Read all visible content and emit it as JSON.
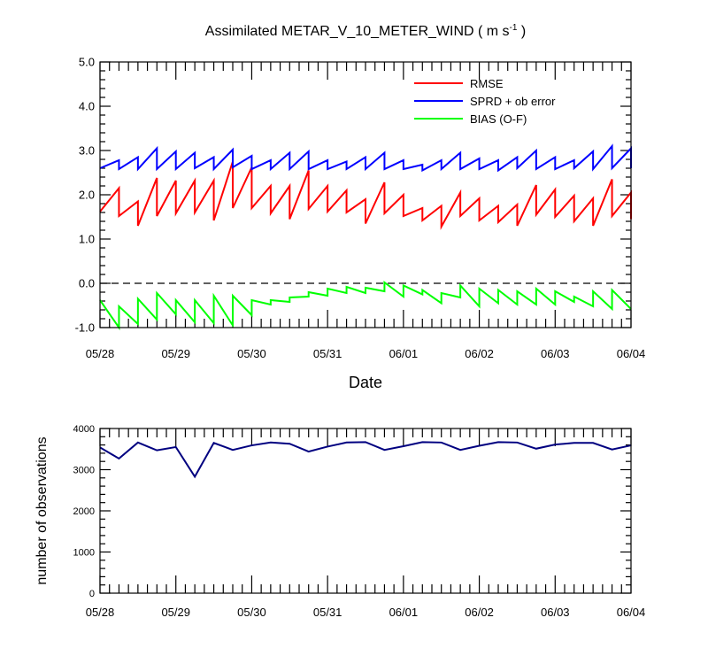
{
  "chart_data": [
    {
      "type": "line",
      "title": "Assimilated METAR_V_10_METER_WIND ( m s",
      "title_superscript": "-1",
      "title_close": " )",
      "xlabel": "Date",
      "ylabel": "",
      "xlim": [
        "05/28",
        "06/04"
      ],
      "ylim": [
        -1.0,
        5.0
      ],
      "yticks": [
        "-1.0",
        "0.0",
        "1.0",
        "2.0",
        "3.0",
        "4.0",
        "5.0"
      ],
      "ytick_values": [
        -1,
        0,
        1,
        2,
        3,
        4,
        5
      ],
      "xticks": [
        "05/28",
        "05/29",
        "05/30",
        "05/31",
        "06/01",
        "06/02",
        "06/03",
        "06/04"
      ],
      "reference_line": 0.0,
      "legend_position": "top-right",
      "series": [
        {
          "name": "RMSE",
          "color": "#ff0000",
          "points": [
            [
              0.0,
              1.62
            ],
            [
              0.25,
              2.15
            ],
            [
              0.25,
              1.52
            ],
            [
              0.5,
              1.85
            ],
            [
              0.5,
              1.3
            ],
            [
              0.75,
              2.38
            ],
            [
              0.75,
              1.52
            ],
            [
              1.0,
              2.32
            ],
            [
              1.0,
              1.58
            ],
            [
              1.25,
              2.32
            ],
            [
              1.25,
              1.6
            ],
            [
              1.5,
              2.32
            ],
            [
              1.5,
              1.42
            ],
            [
              1.75,
              2.75
            ],
            [
              1.75,
              1.7
            ],
            [
              2.0,
              2.62
            ],
            [
              2.0,
              1.7
            ],
            [
              2.25,
              2.2
            ],
            [
              2.25,
              1.58
            ],
            [
              2.5,
              2.2
            ],
            [
              2.5,
              1.45
            ],
            [
              2.75,
              2.55
            ],
            [
              2.75,
              1.68
            ],
            [
              3.0,
              2.2
            ],
            [
              3.0,
              1.62
            ],
            [
              3.25,
              2.1
            ],
            [
              3.25,
              1.6
            ],
            [
              3.5,
              1.9
            ],
            [
              3.5,
              1.35
            ],
            [
              3.75,
              2.28
            ],
            [
              3.75,
              1.58
            ],
            [
              4.0,
              2.0
            ],
            [
              4.0,
              1.52
            ],
            [
              4.25,
              1.7
            ],
            [
              4.25,
              1.42
            ],
            [
              4.5,
              1.75
            ],
            [
              4.5,
              1.28
            ],
            [
              4.75,
              2.05
            ],
            [
              4.75,
              1.52
            ],
            [
              5.0,
              1.92
            ],
            [
              5.0,
              1.42
            ],
            [
              5.25,
              1.75
            ],
            [
              5.25,
              1.38
            ],
            [
              5.5,
              1.78
            ],
            [
              5.5,
              1.3
            ],
            [
              5.75,
              2.22
            ],
            [
              5.75,
              1.55
            ],
            [
              6.0,
              2.12
            ],
            [
              6.0,
              1.5
            ],
            [
              6.25,
              1.98
            ],
            [
              6.25,
              1.4
            ],
            [
              6.5,
              1.92
            ],
            [
              6.5,
              1.3
            ],
            [
              6.75,
              2.35
            ],
            [
              6.75,
              1.52
            ],
            [
              7.0,
              2.05
            ],
            [
              7.0,
              1.45
            ]
          ]
        },
        {
          "name": "SPRD + ob error",
          "color": "#0000ff",
          "points": [
            [
              0.0,
              2.6
            ],
            [
              0.25,
              2.78
            ],
            [
              0.25,
              2.58
            ],
            [
              0.5,
              2.85
            ],
            [
              0.5,
              2.58
            ],
            [
              0.75,
              3.05
            ],
            [
              0.75,
              2.58
            ],
            [
              1.0,
              2.98
            ],
            [
              1.0,
              2.58
            ],
            [
              1.25,
              2.95
            ],
            [
              1.25,
              2.6
            ],
            [
              1.5,
              2.85
            ],
            [
              1.5,
              2.58
            ],
            [
              1.75,
              3.02
            ],
            [
              1.75,
              2.62
            ],
            [
              2.0,
              2.88
            ],
            [
              2.0,
              2.58
            ],
            [
              2.25,
              2.78
            ],
            [
              2.25,
              2.58
            ],
            [
              2.5,
              2.95
            ],
            [
              2.5,
              2.58
            ],
            [
              2.75,
              2.98
            ],
            [
              2.75,
              2.58
            ],
            [
              3.0,
              2.78
            ],
            [
              3.0,
              2.58
            ],
            [
              3.25,
              2.75
            ],
            [
              3.25,
              2.58
            ],
            [
              3.5,
              2.85
            ],
            [
              3.5,
              2.58
            ],
            [
              3.75,
              2.95
            ],
            [
              3.75,
              2.58
            ],
            [
              4.0,
              2.78
            ],
            [
              4.0,
              2.58
            ],
            [
              4.25,
              2.68
            ],
            [
              4.25,
              2.55
            ],
            [
              4.5,
              2.78
            ],
            [
              4.5,
              2.58
            ],
            [
              4.75,
              2.95
            ],
            [
              4.75,
              2.58
            ],
            [
              5.0,
              2.82
            ],
            [
              5.0,
              2.58
            ],
            [
              5.25,
              2.78
            ],
            [
              5.25,
              2.55
            ],
            [
              5.5,
              2.85
            ],
            [
              5.5,
              2.6
            ],
            [
              5.75,
              3.0
            ],
            [
              5.75,
              2.58
            ],
            [
              6.0,
              2.85
            ],
            [
              6.0,
              2.58
            ],
            [
              6.25,
              2.78
            ],
            [
              6.25,
              2.6
            ],
            [
              6.5,
              2.98
            ],
            [
              6.5,
              2.58
            ],
            [
              6.75,
              3.1
            ],
            [
              6.75,
              2.6
            ],
            [
              7.0,
              3.05
            ],
            [
              7.0,
              2.6
            ]
          ]
        },
        {
          "name": "BIAS (O-F)",
          "color": "#00ff00",
          "points": [
            [
              0.0,
              -0.38
            ],
            [
              0.25,
              -1.0
            ],
            [
              0.25,
              -0.52
            ],
            [
              0.5,
              -0.92
            ],
            [
              0.5,
              -0.35
            ],
            [
              0.75,
              -0.82
            ],
            [
              0.75,
              -0.22
            ],
            [
              1.0,
              -0.7
            ],
            [
              1.0,
              -0.38
            ],
            [
              1.25,
              -0.88
            ],
            [
              1.25,
              -0.38
            ],
            [
              1.5,
              -0.9
            ],
            [
              1.5,
              -0.28
            ],
            [
              1.75,
              -0.95
            ],
            [
              1.75,
              -0.28
            ],
            [
              2.0,
              -0.72
            ],
            [
              2.0,
              -0.38
            ],
            [
              2.25,
              -0.48
            ],
            [
              2.25,
              -0.38
            ],
            [
              2.5,
              -0.42
            ],
            [
              2.5,
              -0.32
            ],
            [
              2.75,
              -0.3
            ],
            [
              2.75,
              -0.2
            ],
            [
              3.0,
              -0.28
            ],
            [
              3.0,
              -0.12
            ],
            [
              3.25,
              -0.22
            ],
            [
              3.25,
              -0.08
            ],
            [
              3.5,
              -0.22
            ],
            [
              3.5,
              -0.1
            ],
            [
              3.75,
              -0.18
            ],
            [
              3.75,
              0.02
            ],
            [
              4.0,
              -0.3
            ],
            [
              4.0,
              -0.05
            ],
            [
              4.25,
              -0.25
            ],
            [
              4.25,
              -0.15
            ],
            [
              4.5,
              -0.45
            ],
            [
              4.5,
              -0.22
            ],
            [
              4.75,
              -0.32
            ],
            [
              4.75,
              -0.05
            ],
            [
              5.0,
              -0.52
            ],
            [
              5.0,
              -0.12
            ],
            [
              5.25,
              -0.45
            ],
            [
              5.25,
              -0.15
            ],
            [
              5.5,
              -0.48
            ],
            [
              5.5,
              -0.18
            ],
            [
              5.75,
              -0.48
            ],
            [
              5.75,
              -0.12
            ],
            [
              6.0,
              -0.48
            ],
            [
              6.0,
              -0.18
            ],
            [
              6.25,
              -0.42
            ],
            [
              6.25,
              -0.3
            ],
            [
              6.5,
              -0.52
            ],
            [
              6.5,
              -0.18
            ],
            [
              6.75,
              -0.58
            ],
            [
              6.75,
              -0.15
            ],
            [
              7.0,
              -0.58
            ]
          ]
        }
      ]
    },
    {
      "type": "line",
      "title": "",
      "xlabel": "",
      "ylabel": "number of observations",
      "xlim": [
        "05/28",
        "06/04"
      ],
      "ylim": [
        0,
        4000
      ],
      "yticks": [
        "0",
        "1000",
        "2000",
        "3000",
        "4000"
      ],
      "ytick_values": [
        0,
        1000,
        2000,
        3000,
        4000
      ],
      "xticks": [
        "05/28",
        "05/29",
        "05/30",
        "05/31",
        "06/01",
        "06/02",
        "06/03",
        "06/04"
      ],
      "series": [
        {
          "name": "",
          "color": "#000080",
          "points": [
            [
              0.0,
              3540
            ],
            [
              0.25,
              3270
            ],
            [
              0.5,
              3660
            ],
            [
              0.75,
              3470
            ],
            [
              1.0,
              3550
            ],
            [
              1.25,
              2830
            ],
            [
              1.5,
              3650
            ],
            [
              1.75,
              3480
            ],
            [
              2.0,
              3590
            ],
            [
              2.25,
              3660
            ],
            [
              2.5,
              3630
            ],
            [
              2.75,
              3440
            ],
            [
              3.0,
              3560
            ],
            [
              3.25,
              3660
            ],
            [
              3.5,
              3670
            ],
            [
              3.75,
              3480
            ],
            [
              4.0,
              3570
            ],
            [
              4.25,
              3670
            ],
            [
              4.5,
              3660
            ],
            [
              4.75,
              3480
            ],
            [
              5.0,
              3580
            ],
            [
              5.25,
              3670
            ],
            [
              5.5,
              3660
            ],
            [
              5.75,
              3510
            ],
            [
              6.0,
              3610
            ],
            [
              6.25,
              3650
            ],
            [
              6.5,
              3650
            ],
            [
              6.75,
              3490
            ],
            [
              7.0,
              3590
            ]
          ]
        }
      ]
    }
  ]
}
